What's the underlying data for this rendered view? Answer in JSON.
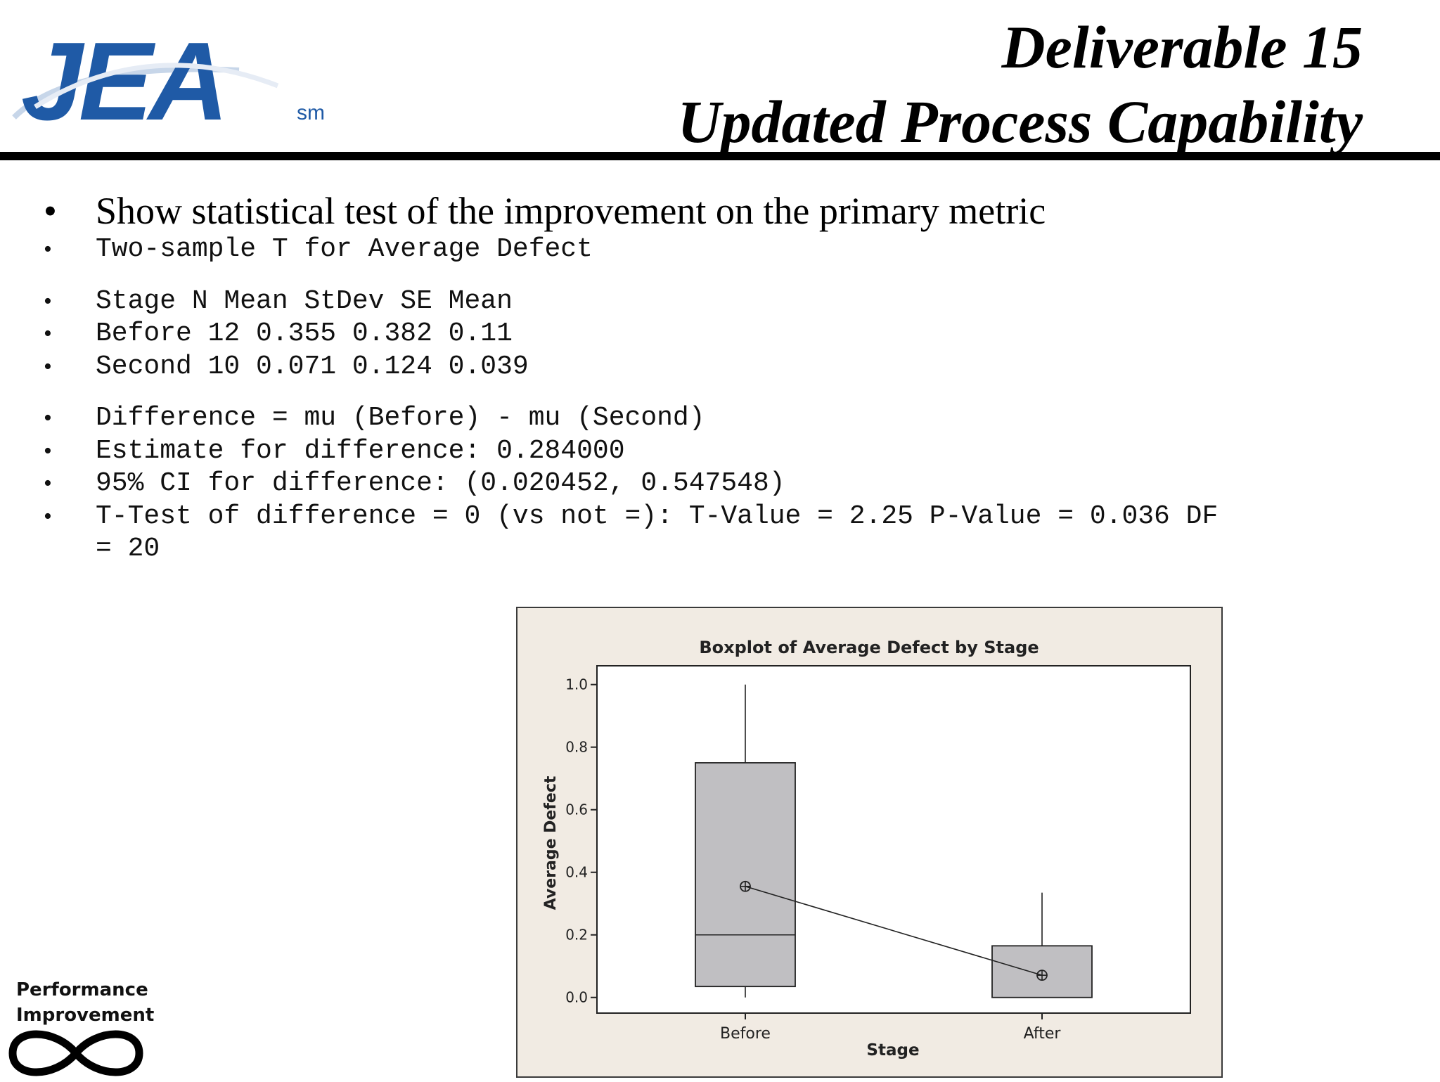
{
  "header": {
    "logo_text": "JEA",
    "logo_mark": "sm",
    "title_line1": "Deliverable 15",
    "title_line2": "Updated Process Capability"
  },
  "bullets": {
    "lead": "Show statistical test of the improvement on the primary metric",
    "test_name": "Two-sample T for Average Defect",
    "table_header": "Stage N Mean StDev SE Mean",
    "row_before": "Before 12 0.355 0.382 0.11",
    "row_second": "Second 10 0.071 0.124 0.039",
    "difference": "Difference = mu (Before) - mu (Second)",
    "estimate": "Estimate for difference: 0.284000",
    "ci": "95% CI for difference: (0.020452, 0.547548)",
    "ttest_line1": "T-Test of difference = 0 (vs not =): T-Value = 2.25 P-Value = 0.036 DF",
    "ttest_line2": "= 20"
  },
  "chart_data": {
    "type": "boxplot",
    "title": "Boxplot of Average Defect by Stage",
    "xlabel": "Stage",
    "ylabel": "Average Defect",
    "ylim": [
      -0.05,
      1.06
    ],
    "yticks": [
      0.0,
      0.2,
      0.4,
      0.6,
      0.8,
      1.0
    ],
    "ytick_labels": [
      "0.0",
      "0.2",
      "0.4",
      "0.6",
      "0.8",
      "1.0"
    ],
    "categories": [
      "Before",
      "After"
    ],
    "boxes": [
      {
        "category": "Before",
        "whisker_low": 0.0,
        "q1": 0.035,
        "median": 0.2,
        "q3": 0.75,
        "whisker_high": 1.0,
        "mean": 0.355
      },
      {
        "category": "After",
        "whisker_low": 0.0,
        "q1": 0.0,
        "median": 0.0,
        "q3": 0.165,
        "whisker_high": 0.335,
        "mean": 0.071
      }
    ],
    "mean_line": true,
    "colors": {
      "box_fill": "#c0bfc2",
      "frame_bg": "#f1ebe3",
      "plot_bg": "#ffffff"
    }
  },
  "footer": {
    "pi_line1": "Performance",
    "pi_line2": "Improvement"
  },
  "colors": {
    "jea_blue": "#1f5aa6"
  }
}
